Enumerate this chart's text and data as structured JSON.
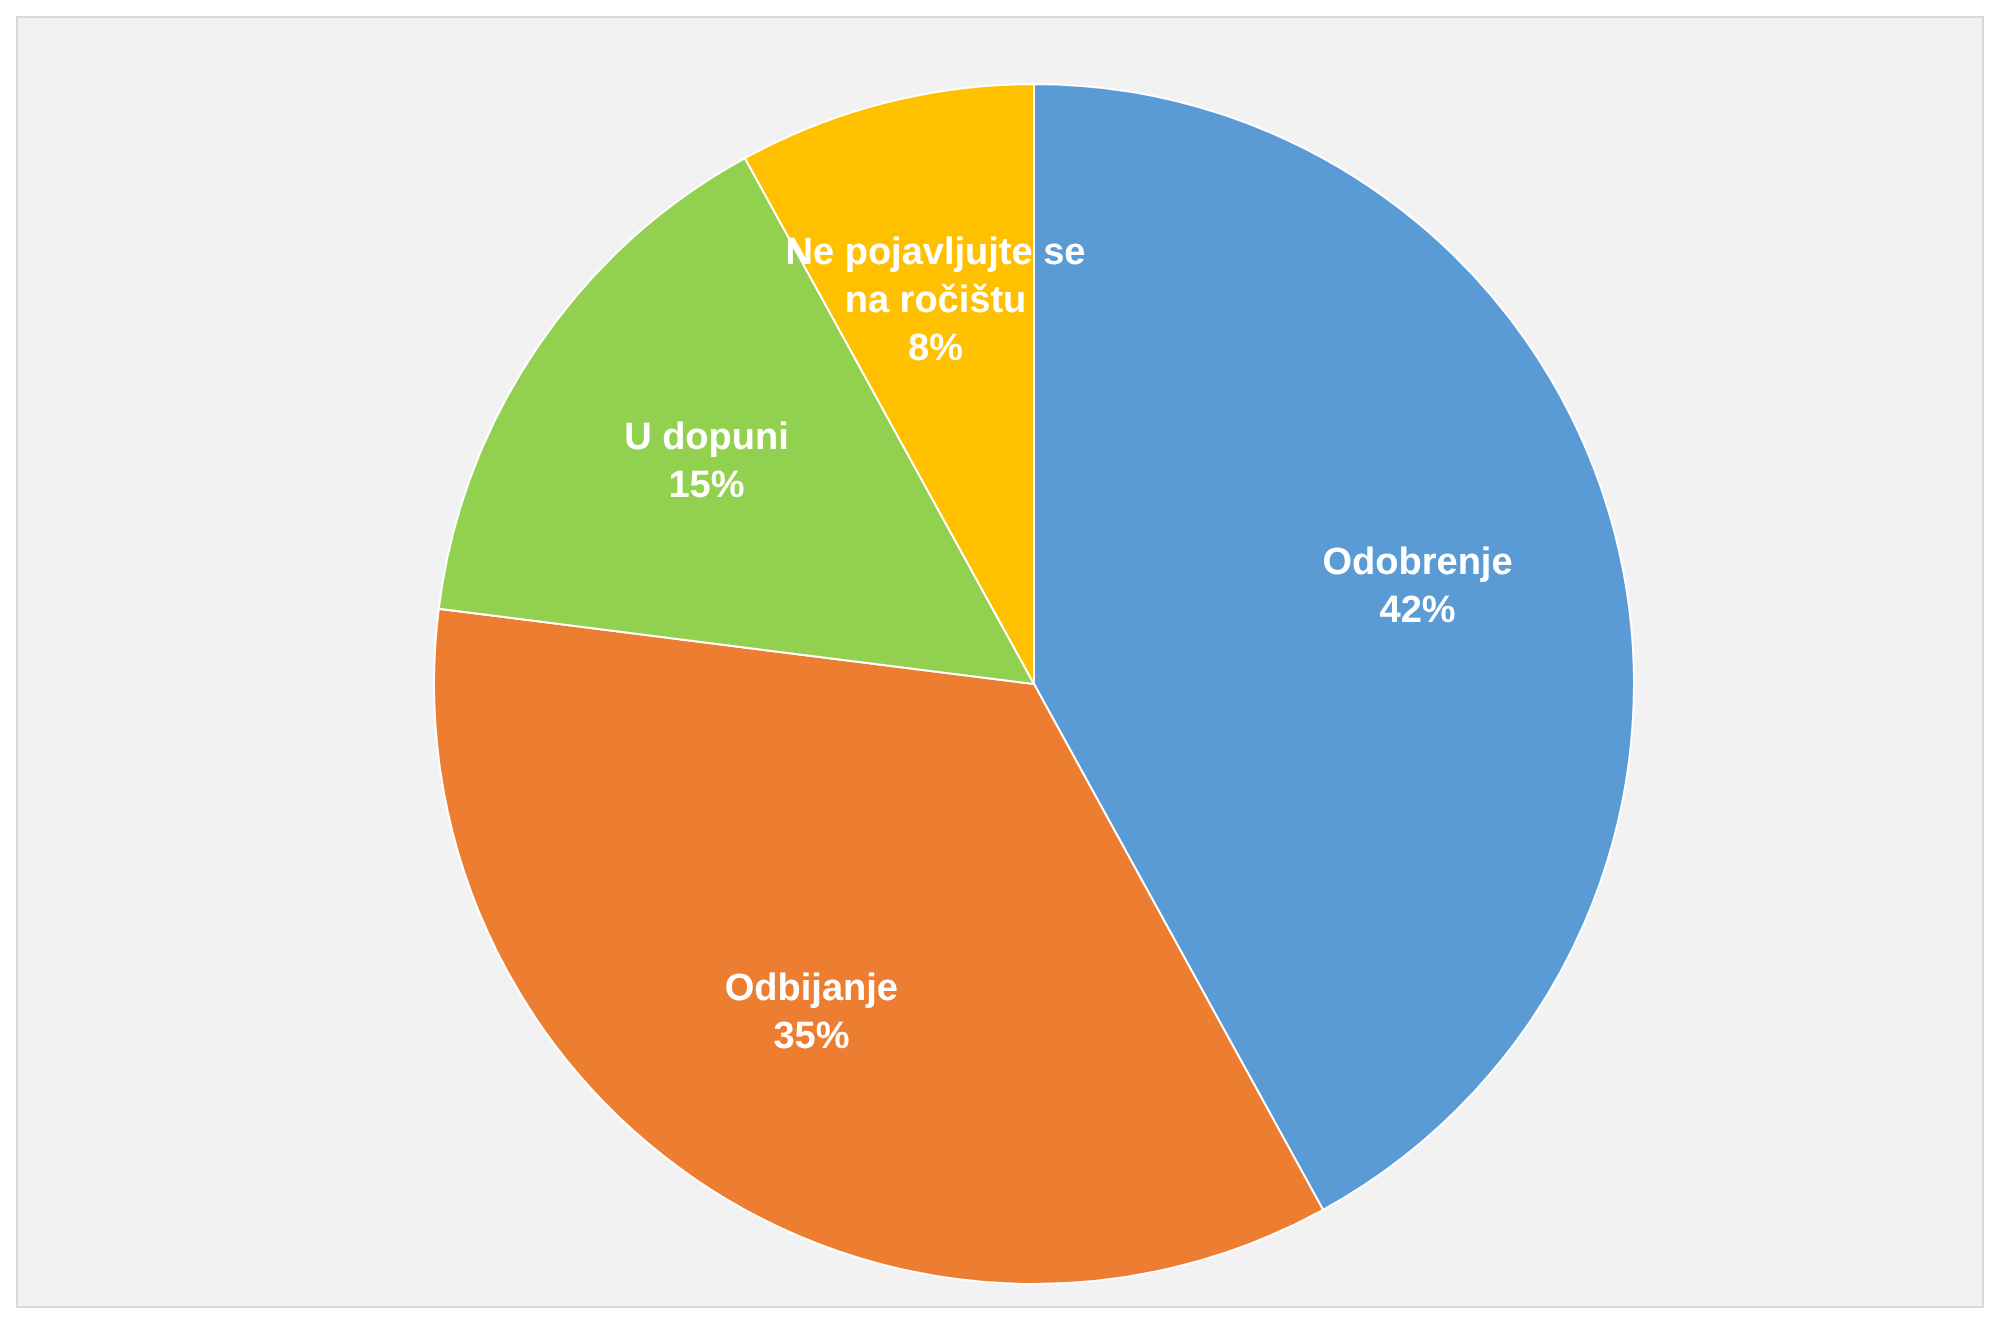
{
  "chart_data": {
    "type": "pie",
    "categories": [
      "Odobrenje",
      "Odbijanje",
      "U dopuni",
      "Ne pojavljujte se na ročištu"
    ],
    "values": [
      42,
      35,
      15,
      8
    ],
    "colors": [
      "#5b9bd5",
      "#ed7d31",
      "#92d050",
      "#ffc000"
    ],
    "value_labels": [
      "42%",
      "35%",
      "15%",
      "8%"
    ],
    "legend": false
  }
}
